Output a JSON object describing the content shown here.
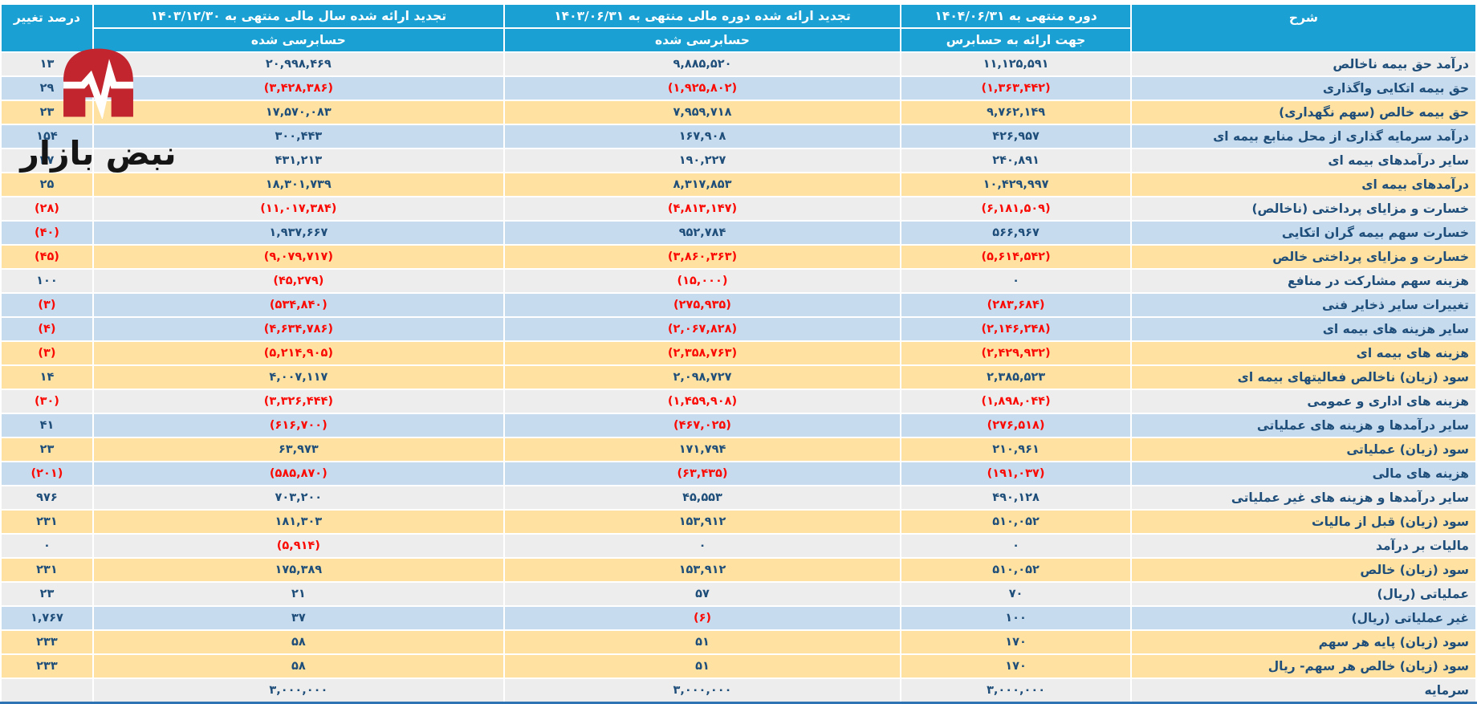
{
  "logo": {
    "text": "نبض بازار",
    "icon": "pulse-heartbeat-icon",
    "icon_color": "#C2252E",
    "text_color": "#151515"
  },
  "table": {
    "headers": {
      "description": "شرح",
      "current_period": "دوره منتهی به ۱۴۰۴/۰۶/۳۱",
      "restated_half_year": "تجدید ارائه شده دوره مالی منتهی به ۱۴۰۳/۰۶/۳۱",
      "restated_fiscal_year": "تجدید ارائه شده سال مالی منتهی به ۱۴۰۳/۱۲/۳۰",
      "percent_change": "درصد تغییر"
    },
    "subheaders": {
      "current_period": "جهت ارائه به حسابرس",
      "restated_half_year": "حسابرسی شده",
      "restated_fiscal_year": "حسابرسی شده"
    },
    "rows": [
      {
        "label": "درآمد حق بیمه ناخالص",
        "current_period": "۱۱,۱۲۵,۵۹۱",
        "restated_half_year": "۹,۸۸۵,۵۲۰",
        "restated_fiscal_year": "۲۰,۹۹۸,۴۶۹",
        "percent_change": "۱۳",
        "highlight": "gray"
      },
      {
        "label": "حق بیمه اتکایی واگذاری",
        "current_period": "(۱,۳۶۳,۴۴۲)",
        "restated_half_year": "(۱,۹۲۵,۸۰۲)",
        "restated_fiscal_year": "(۳,۴۲۸,۳۸۶)",
        "percent_change": "۲۹",
        "highlight": "blue"
      },
      {
        "label": "حق بیمه خالص (سهم نگهداری)",
        "current_period": "۹,۷۶۲,۱۴۹",
        "restated_half_year": "۷,۹۵۹,۷۱۸",
        "restated_fiscal_year": "۱۷,۵۷۰,۰۸۳",
        "percent_change": "۲۳",
        "highlight": "orange"
      },
      {
        "label": "درآمد سرمایه گذاری از محل منابع بیمه ای",
        "current_period": "۴۲۶,۹۵۷",
        "restated_half_year": "۱۶۷,۹۰۸",
        "restated_fiscal_year": "۳۰۰,۴۴۳",
        "percent_change": "۱۵۴",
        "highlight": "blue"
      },
      {
        "label": "سایر درآمدهای بیمه ای",
        "current_period": "۲۴۰,۸۹۱",
        "restated_half_year": "۱۹۰,۲۲۷",
        "restated_fiscal_year": "۴۳۱,۲۱۳",
        "percent_change": "۲۷",
        "highlight": "gray"
      },
      {
        "label": "درآمدهای بیمه ای",
        "current_period": "۱۰,۴۲۹,۹۹۷",
        "restated_half_year": "۸,۳۱۷,۸۵۳",
        "restated_fiscal_year": "۱۸,۳۰۱,۷۳۹",
        "percent_change": "۲۵",
        "highlight": "orange"
      },
      {
        "label": "خسارت و مزایای پرداختی (ناخالص)",
        "current_period": "(۶,۱۸۱,۵۰۹)",
        "restated_half_year": "(۴,۸۱۳,۱۴۷)",
        "restated_fiscal_year": "(۱۱,۰۱۷,۳۸۴)",
        "percent_change": "(۲۸)",
        "highlight": "gray"
      },
      {
        "label": "خسارت سهم بیمه گران اتکایی",
        "current_period": "۵۶۶,۹۶۷",
        "restated_half_year": "۹۵۲,۷۸۴",
        "restated_fiscal_year": "۱,۹۳۷,۶۶۷",
        "percent_change": "(۴۰)",
        "highlight": "blue"
      },
      {
        "label": "خسارت و مزایای پرداختی خالص",
        "current_period": "(۵,۶۱۴,۵۴۲)",
        "restated_half_year": "(۳,۸۶۰,۳۶۳)",
        "restated_fiscal_year": "(۹,۰۷۹,۷۱۷)",
        "percent_change": "(۴۵)",
        "highlight": "orange"
      },
      {
        "label": "هزینه سهم مشارکت در منافع",
        "current_period": "۰",
        "restated_half_year": "(۱۵,۰۰۰)",
        "restated_fiscal_year": "(۴۵,۲۷۹)",
        "percent_change": "۱۰۰",
        "highlight": "gray"
      },
      {
        "label": "تغییرات سایر ذخایر فنی",
        "current_period": "(۲۸۳,۶۸۴)",
        "restated_half_year": "(۲۷۵,۹۳۵)",
        "restated_fiscal_year": "(۵۳۴,۸۴۰)",
        "percent_change": "(۳)",
        "highlight": "blue"
      },
      {
        "label": "سایر هزینه های بیمه ای",
        "current_period": "(۲,۱۴۶,۲۴۸)",
        "restated_half_year": "(۲,۰۶۷,۸۲۸)",
        "restated_fiscal_year": "(۴,۶۳۴,۷۸۶)",
        "percent_change": "(۴)",
        "highlight": "blue"
      },
      {
        "label": "هزینه های بیمه ای",
        "current_period": "(۲,۴۲۹,۹۳۲)",
        "restated_half_year": "(۲,۳۵۸,۷۶۳)",
        "restated_fiscal_year": "(۵,۲۱۴,۹۰۵)",
        "percent_change": "(۳)",
        "highlight": "orange"
      },
      {
        "label": "سود (زیان) ناخالص فعالیتهای بیمه ای",
        "current_period": "۲,۳۸۵,۵۲۳",
        "restated_half_year": "۲,۰۹۸,۷۲۷",
        "restated_fiscal_year": "۴,۰۰۷,۱۱۷",
        "percent_change": "۱۴",
        "highlight": "orange"
      },
      {
        "label": "هزینه های اداری و عمومی",
        "current_period": "(۱,۸۹۸,۰۴۴)",
        "restated_half_year": "(۱,۴۵۹,۹۰۸)",
        "restated_fiscal_year": "(۳,۳۲۶,۴۴۴)",
        "percent_change": "(۳۰)",
        "highlight": "gray"
      },
      {
        "label": "سایر درآمدها و هزینه های عملیاتی",
        "current_period": "(۲۷۶,۵۱۸)",
        "restated_half_year": "(۴۶۷,۰۲۵)",
        "restated_fiscal_year": "(۶۱۶,۷۰۰)",
        "percent_change": "۴۱",
        "highlight": "blue"
      },
      {
        "label": "سود (زیان) عملیاتی",
        "current_period": "۲۱۰,۹۶۱",
        "restated_half_year": "۱۷۱,۷۹۴",
        "restated_fiscal_year": "۶۳,۹۷۳",
        "percent_change": "۲۳",
        "highlight": "orange"
      },
      {
        "label": "هزینه های مالی",
        "current_period": "(۱۹۱,۰۳۷)",
        "restated_half_year": "(۶۳,۴۳۵)",
        "restated_fiscal_year": "(۵۸۵,۸۷۰)",
        "percent_change": "(۲۰۱)",
        "highlight": "blue"
      },
      {
        "label": "سایر درآمدها و هزینه های غیر عملیاتی",
        "current_period": "۴۹۰,۱۲۸",
        "restated_half_year": "۴۵,۵۵۳",
        "restated_fiscal_year": "۷۰۳,۲۰۰",
        "percent_change": "۹۷۶",
        "highlight": "gray"
      },
      {
        "label": "سود (زیان) قبل از مالیات",
        "current_period": "۵۱۰,۰۵۲",
        "restated_half_year": "۱۵۳,۹۱۲",
        "restated_fiscal_year": "۱۸۱,۳۰۳",
        "percent_change": "۲۳۱",
        "highlight": "orange"
      },
      {
        "label": "مالیات بر درآمد",
        "current_period": "۰",
        "restated_half_year": "۰",
        "restated_fiscal_year": "(۵,۹۱۴)",
        "percent_change": "۰",
        "highlight": "gray"
      },
      {
        "label": "سود (زیان) خالص",
        "current_period": "۵۱۰,۰۵۲",
        "restated_half_year": "۱۵۳,۹۱۲",
        "restated_fiscal_year": "۱۷۵,۳۸۹",
        "percent_change": "۲۳۱",
        "highlight": "orange"
      },
      {
        "label": "عملیاتی (ریال)",
        "current_period": "۷۰",
        "restated_half_year": "۵۷",
        "restated_fiscal_year": "۲۱",
        "percent_change": "۲۳",
        "highlight": "gray"
      },
      {
        "label": "غیر عملیاتی (ریال)",
        "current_period": "۱۰۰",
        "restated_half_year": "(۶)",
        "restated_fiscal_year": "۳۷",
        "percent_change": "۱,۷۶۷",
        "highlight": "blue"
      },
      {
        "label": "سود (زیان) پایه هر سهم",
        "current_period": "۱۷۰",
        "restated_half_year": "۵۱",
        "restated_fiscal_year": "۵۸",
        "percent_change": "۲۳۳",
        "highlight": "orange"
      },
      {
        "label": "سود (زیان) خالص هر سهم- ریال",
        "current_period": "۱۷۰",
        "restated_half_year": "۵۱",
        "restated_fiscal_year": "۵۸",
        "percent_change": "۲۳۳",
        "highlight": "orange"
      },
      {
        "label": "سرمایه",
        "current_period": "۳,۰۰۰,۰۰۰",
        "restated_half_year": "۳,۰۰۰,۰۰۰",
        "restated_fiscal_year": "۳,۰۰۰,۰۰۰",
        "percent_change": "",
        "highlight": "gray"
      }
    ]
  },
  "palette": {
    "header_background": "#1AA0D2",
    "header_text": "#FFFFFF",
    "row_gray": "#EDEDED",
    "row_blue": "#C7DBEF",
    "row_orange": "#FFE2A2",
    "value_text": "#1E4E79",
    "negative_text": "#F90B04",
    "bottom_border": "#2E74B5",
    "logo_red": "#C2252E"
  }
}
